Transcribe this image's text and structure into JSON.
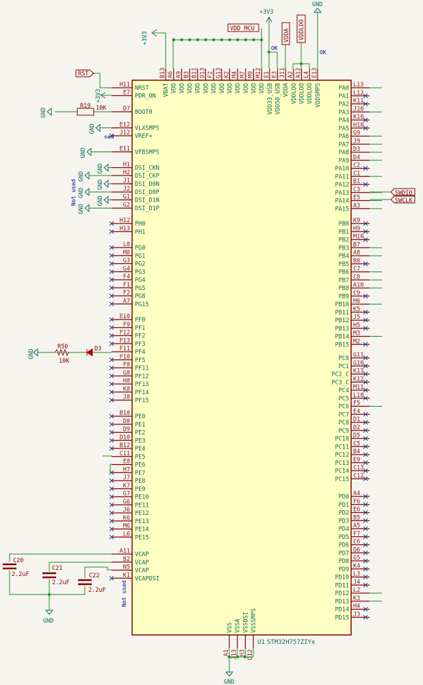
{
  "colors": {
    "background": "#f5f4ef",
    "symbol_fill": "#ffffc2",
    "symbol_outline": "#840000",
    "wire": "#1f8a1f",
    "pin_name": "#0b6b5c",
    "pin_number": "#8b1a1a",
    "no_connect": "#223a8a"
  },
  "component": {
    "ref": "U1",
    "value": "STM32H757ZIYx"
  },
  "nets": {
    "rst": "RST",
    "vdd_mcu": "VDD_MCU",
    "vdda": "VDDA",
    "vddldo": "VDDLDO",
    "swdio": "SWDIO",
    "swclk": "SWCLK",
    "p3v3": "+3V3",
    "gnd": "GND",
    "ok1": "OK",
    "ok2": "OK",
    "not_used": "Not used",
    "not_used2": "Not used",
    "sed": "sed"
  },
  "parts": {
    "r19": {
      "ref": "R19",
      "value": "10K"
    },
    "r50": {
      "ref": "R50",
      "value": "10K"
    },
    "d3": {
      "ref": "D3"
    },
    "c20": {
      "ref": "C20",
      "value": "2.2uF"
    },
    "c21": {
      "ref": "C21",
      "value": "2.2uF"
    },
    "c22": {
      "ref": "C22",
      "value": "2.2uF"
    }
  },
  "top_pins": [
    [
      "B13",
      "VBAT"
    ],
    [
      "A6",
      "VDD"
    ],
    [
      "A9",
      "VDD"
    ],
    [
      "B3",
      "VDD"
    ],
    [
      "B11",
      "VDD"
    ],
    [
      "D13",
      "VDD"
    ],
    [
      "F2",
      "VDD"
    ],
    [
      "G13",
      "VDD"
    ],
    [
      "K2",
      "VDD"
    ],
    [
      "M4",
      "VDD"
    ],
    [
      "M7",
      "VDD"
    ],
    [
      "M9",
      "VDD"
    ],
    [
      "M12",
      "VDD"
    ],
    [
      "E1",
      "VDD33_USB"
    ],
    [
      "E3",
      "VDD50_USB"
    ],
    [
      "J11",
      "VDDA"
    ],
    [
      "A2",
      "VDDLDO"
    ],
    [
      "A12",
      "VDDLDO"
    ],
    [
      "L4",
      "VDDLDO"
    ],
    [
      "E13",
      "VDDSMPS"
    ]
  ],
  "bottom_pins": [
    [
      "A1",
      "VSS"
    ],
    [
      "J13",
      "VSSA"
    ],
    [
      "H3",
      "VSSDSI"
    ],
    [
      "D12",
      "VSSSMPS"
    ]
  ],
  "left_pins": [
    [
      "H11",
      "NRST",
      0
    ],
    [
      "E7",
      "PDR_ON",
      0
    ],
    [
      "D7",
      "BOOT0",
      0
    ],
    [
      "E12",
      "VLXSMPS",
      0
    ],
    [
      "J12",
      "VREF+",
      1
    ],
    [
      "E11",
      "VFBSMPS",
      0
    ],
    [
      "H1",
      "DSI_CKN",
      0
    ],
    [
      "H2",
      "DSI_CKP",
      0
    ],
    [
      "J1",
      "DSI_D0N",
      0
    ],
    [
      "J2",
      "DSI_D0P",
      0
    ],
    [
      "G1",
      "DSI_D1N",
      0
    ],
    [
      "G2",
      "DSI_D1P",
      0
    ],
    [
      "H12",
      "PH0",
      1
    ],
    [
      "H13",
      "PH1",
      1
    ],
    [
      "L8",
      "PG0",
      1
    ],
    [
      "M8",
      "PG1",
      1
    ],
    [
      "G3",
      "PG2",
      1
    ],
    [
      "G4",
      "PG3",
      1
    ],
    [
      "F4",
      "PG4",
      1
    ],
    [
      "F1",
      "PG5",
      1
    ],
    [
      "F2",
      "PG8",
      1
    ],
    [
      "A7",
      "PG15",
      1
    ],
    [
      "E10",
      "PF0",
      1
    ],
    [
      "F9",
      "PF1",
      1
    ],
    [
      "F12",
      "PF2",
      1
    ],
    [
      "F13",
      "PF3",
      1
    ],
    [
      "F11",
      "PF4",
      0
    ],
    [
      "F10",
      "PF5",
      1
    ],
    [
      "F8",
      "PF11",
      1
    ],
    [
      "G8",
      "PF12",
      1
    ],
    [
      "H8",
      "PF13",
      1
    ],
    [
      "K8",
      "PF14",
      1
    ],
    [
      "J8",
      "PF15",
      1
    ],
    [
      "B10",
      "PE0",
      1
    ],
    [
      "D8",
      "PE1",
      1
    ],
    [
      "D9",
      "PE2",
      1
    ],
    [
      "D10",
      "PE3",
      1
    ],
    [
      "B12",
      "PE4",
      1
    ],
    [
      "C11",
      "PE5",
      0
    ],
    [
      "E8",
      "PE6",
      0
    ],
    [
      "H7",
      "PE7",
      1
    ],
    [
      "J7",
      "PE8",
      1
    ],
    [
      "K7",
      "PE9",
      1
    ],
    [
      "G7",
      "PE10",
      1
    ],
    [
      "G6",
      "PE11",
      1
    ],
    [
      "J6",
      "PE12",
      1
    ],
    [
      "K6",
      "PE13",
      1
    ],
    [
      "M6",
      "PE14",
      1
    ],
    [
      "L6",
      "PE15",
      1
    ],
    [
      "A11",
      "VCAP",
      0
    ],
    [
      "B2",
      "VCAP",
      0
    ],
    [
      "N5",
      "VCAP",
      0
    ],
    [
      "K1",
      "VCAPDSI",
      1
    ]
  ],
  "right_pins": [
    [
      "L13",
      "PA0",
      0
    ],
    [
      "L12",
      "PA1",
      1
    ],
    [
      "K11",
      "PA2",
      1
    ],
    [
      "J10",
      "PA3",
      0
    ],
    [
      "K10",
      "PA4",
      1
    ],
    [
      "H10",
      "PA5",
      1
    ],
    [
      "G9",
      "PA6",
      0
    ],
    [
      "J9",
      "PA7",
      0
    ],
    [
      "D3",
      "PA8",
      0
    ],
    [
      "D4",
      "PA9",
      0
    ],
    [
      "C2",
      "PA10",
      1
    ],
    [
      "C1",
      "PA11",
      0
    ],
    [
      "B1",
      "PA12",
      1
    ],
    [
      "C3",
      "PA13",
      0
    ],
    [
      "E5",
      "PA14",
      0
    ],
    [
      "A3",
      "PA15",
      0
    ],
    [
      "K9",
      "PB0",
      1
    ],
    [
      "H9",
      "PB1",
      1
    ],
    [
      "M10",
      "PB2",
      1
    ],
    [
      "B7",
      "PB3",
      0
    ],
    [
      "A8",
      "PB4",
      0
    ],
    [
      "B8",
      "PB5",
      1
    ],
    [
      "C7",
      "PB6",
      0
    ],
    [
      "C8",
      "PB7",
      0
    ],
    [
      "A10",
      "PB8",
      0
    ],
    [
      "C9",
      "PB9",
      1
    ],
    [
      "H6",
      "PB10",
      0
    ],
    [
      "K5",
      "PB11",
      1
    ],
    [
      "J5",
      "PB12",
      1
    ],
    [
      "H5",
      "PB13",
      1
    ],
    [
      "M3",
      "PB14",
      0
    ],
    [
      "M2",
      "PB15",
      1
    ],
    [
      "G11",
      "PC0",
      1
    ],
    [
      "G10",
      "PC1",
      1
    ],
    [
      "K13",
      "PC2_C",
      1
    ],
    [
      "K12",
      "PC3_C",
      1
    ],
    [
      "M11",
      "PC4",
      1
    ],
    [
      "L10",
      "PC5",
      1
    ],
    [
      "F5",
      "PC6",
      0
    ],
    [
      "E4",
      "PC7",
      1
    ],
    [
      "D1",
      "PC8",
      1
    ],
    [
      "D2",
      "PC9",
      1
    ],
    [
      "D5",
      "PC10",
      1
    ],
    [
      "C5",
      "PC11",
      1
    ],
    [
      "B4",
      "PC12",
      1
    ],
    [
      "E9",
      "PC13",
      1
    ],
    [
      "C13",
      "PC14",
      1
    ],
    [
      "C12",
      "PC15",
      1
    ],
    [
      "A4",
      "PD0",
      1
    ],
    [
      "F6",
      "PD1",
      1
    ],
    [
      "E6",
      "PD2",
      1
    ],
    [
      "B5",
      "PD3",
      1
    ],
    [
      "A5",
      "PD4",
      1
    ],
    [
      "F7",
      "PD5",
      1
    ],
    [
      "C6",
      "PD6",
      1
    ],
    [
      "D6",
      "PD7",
      1
    ],
    [
      "G5",
      "PD8",
      1
    ],
    [
      "K4",
      "PD9",
      1
    ],
    [
      "L3",
      "PD10",
      1
    ],
    [
      "J4",
      "PD11",
      1
    ],
    [
      "L2",
      "PD12",
      0
    ],
    [
      "K3",
      "PD13",
      0
    ],
    [
      "H4",
      "PD14",
      1
    ],
    [
      "J3",
      "PD15",
      1
    ]
  ]
}
